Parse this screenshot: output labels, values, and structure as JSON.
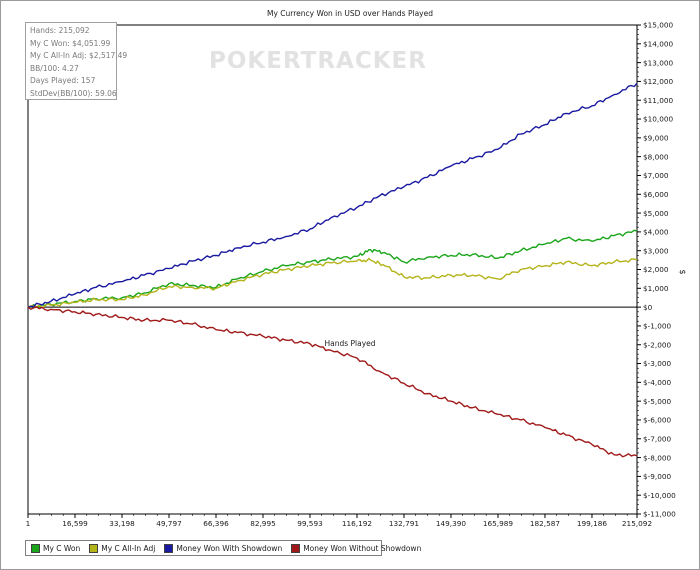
{
  "watermark": "POKERTRACKER",
  "stats": [
    "Hands: 215,092",
    "My C Won: $4,051.99",
    "My C All-In Adj: $2,517.49",
    "BB/100: 4.27",
    "Days Played: 157",
    "StdDev(BB/100): 59.06"
  ],
  "legend": [
    {
      "label": "My C Won",
      "color": "#1aa51a"
    },
    {
      "label": "My C All-In Adj",
      "color": "#b3b31a"
    },
    {
      "label": "Money Won With Showdown",
      "color": "#1a1aa0"
    },
    {
      "label": "Money Won Without Showdown",
      "color": "#a01a1a"
    }
  ],
  "chart_data": {
    "type": "line",
    "title": "My Currency Won in USD over Hands Played",
    "xlabel": "Hands Played",
    "ylabel": "$",
    "xlim": [
      1,
      215092
    ],
    "ylim": [
      -11000,
      15000
    ],
    "x_ticks": [
      1,
      16599,
      33198,
      49797,
      66396,
      82995,
      99593,
      116192,
      132791,
      149390,
      165989,
      182587,
      199186,
      215092
    ],
    "x_tick_labels": [
      "1",
      "16,599",
      "33,198",
      "49,797",
      "66,396",
      "82,995",
      "99,593",
      "116,192",
      "132,791",
      "149,390",
      "165,989",
      "182,587",
      "199,186",
      "215,092"
    ],
    "y_ticks": [
      15000,
      14000,
      13000,
      12000,
      11000,
      10000,
      9000,
      8000,
      7000,
      6000,
      5000,
      4000,
      3000,
      2000,
      1000,
      0,
      -1000,
      -2000,
      -3000,
      -4000,
      -5000,
      -6000,
      -7000,
      -8000,
      -9000,
      -10000,
      -11000
    ],
    "y_tick_labels": [
      "$15,000",
      "$14,000",
      "$13,000",
      "$12,000",
      "$11,000",
      "$10,000",
      "$9,000",
      "$8,000",
      "$7,000",
      "$6,000",
      "$5,000",
      "$4,000",
      "$3,000",
      "$2,000",
      "$1,000",
      "$0",
      "$-1,000",
      "$-2,000",
      "$-3,000",
      "$-4,000",
      "$-5,000",
      "$-6,000",
      "$-7,000",
      "$-8,000",
      "$-9,000",
      "$-10,000",
      "$-11,000"
    ],
    "grid": false,
    "legend_position": "bottom-left",
    "series": [
      {
        "name": "My C Won",
        "color": "#1aa51a",
        "x": [
          1,
          8000,
          16599,
          24000,
          33198,
          41000,
          49797,
          58000,
          66396,
          74000,
          82995,
          91000,
          99593,
          107000,
          116192,
          121000,
          126000,
          132791,
          141000,
          149390,
          157000,
          165989,
          174000,
          182587,
          190000,
          199186,
          207000,
          215092
        ],
        "y": [
          0,
          150,
          300,
          450,
          500,
          750,
          1250,
          1150,
          1050,
          1500,
          1900,
          2200,
          2400,
          2550,
          2700,
          3050,
          2900,
          2400,
          2650,
          2750,
          2800,
          2600,
          3000,
          3350,
          3650,
          3500,
          3800,
          4050
        ]
      },
      {
        "name": "My C All-In Adj",
        "color": "#b3b31a",
        "x": [
          1,
          8000,
          16599,
          24000,
          33198,
          41000,
          49797,
          58000,
          66396,
          74000,
          82995,
          91000,
          99593,
          107000,
          116192,
          121000,
          126000,
          132791,
          141000,
          149390,
          157000,
          165989,
          174000,
          182587,
          190000,
          199186,
          207000,
          215092
        ],
        "y": [
          0,
          100,
          250,
          400,
          400,
          650,
          1100,
          1050,
          1000,
          1400,
          1750,
          2000,
          2200,
          2350,
          2450,
          2500,
          2200,
          1600,
          1550,
          1700,
          1700,
          1500,
          2000,
          2200,
          2400,
          2200,
          2400,
          2520
        ]
      },
      {
        "name": "Money Won With Showdown",
        "color": "#1a1aa0",
        "x": [
          1,
          8000,
          16599,
          24000,
          33198,
          41000,
          49797,
          58000,
          66396,
          74000,
          82995,
          91000,
          99593,
          107000,
          116192,
          124000,
          132791,
          141000,
          149390,
          157000,
          165989,
          174000,
          182587,
          190000,
          199186,
          207000,
          215092
        ],
        "y": [
          0,
          300,
          700,
          1050,
          1350,
          1700,
          2050,
          2450,
          2750,
          3150,
          3450,
          3750,
          4150,
          4750,
          5300,
          5900,
          6400,
          6900,
          7500,
          7900,
          8400,
          9200,
          9700,
          10300,
          10700,
          11300,
          11900
        ]
      },
      {
        "name": "Money Won Without Showdown",
        "color": "#a01a1a",
        "x": [
          1,
          8000,
          16599,
          24000,
          33198,
          41000,
          49797,
          58000,
          66396,
          74000,
          82995,
          91000,
          99593,
          107000,
          116192,
          124000,
          132791,
          141000,
          149390,
          157000,
          165989,
          174000,
          182587,
          190000,
          199186,
          207000,
          215092
        ],
        "y": [
          0,
          -120,
          -250,
          -380,
          -550,
          -700,
          -700,
          -900,
          -1200,
          -1350,
          -1550,
          -1750,
          -1950,
          -2300,
          -2700,
          -3400,
          -4050,
          -4600,
          -5000,
          -5350,
          -5700,
          -6000,
          -6400,
          -6800,
          -7300,
          -7850,
          -7900
        ]
      }
    ]
  }
}
